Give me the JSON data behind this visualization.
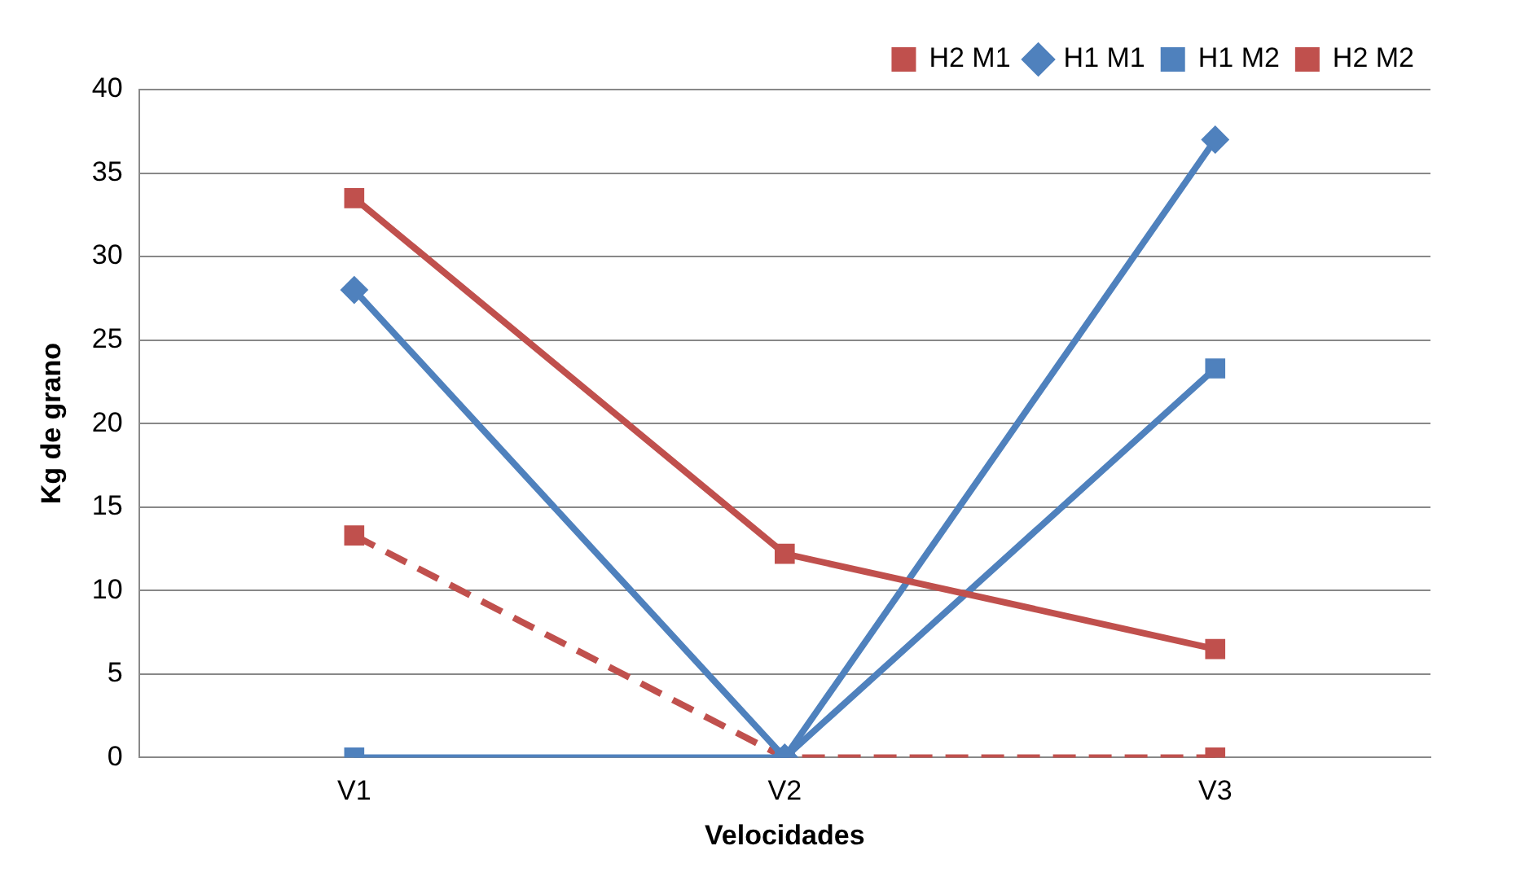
{
  "chart_data": {
    "type": "line",
    "categories": [
      "V1",
      "V2",
      "V3"
    ],
    "xlabel": "Velocidades",
    "ylabel": "Kg de grano",
    "ylim": [
      0,
      40
    ],
    "yticks": [
      0,
      5,
      10,
      15,
      20,
      25,
      30,
      35,
      40
    ],
    "grid": "y",
    "legend": "top",
    "series": [
      {
        "name": "H2 M1",
        "color": "#c0504d",
        "values": [
          33.5,
          12.2,
          6.5
        ],
        "marker": "square",
        "line_style": "solid"
      },
      {
        "name": "H1 M1",
        "color": "#4f81bd",
        "values": [
          28,
          0,
          37
        ],
        "marker": "diamond",
        "line_style": "solid"
      },
      {
        "name": "H1 M2",
        "color": "#4f81bd",
        "values": [
          0,
          0,
          23.3
        ],
        "marker": "square",
        "line_style": "solid"
      },
      {
        "name": "H2 M2",
        "color": "#c0504d",
        "values": [
          13.3,
          0,
          0
        ],
        "marker": "square",
        "line_style": "dashed"
      }
    ]
  }
}
